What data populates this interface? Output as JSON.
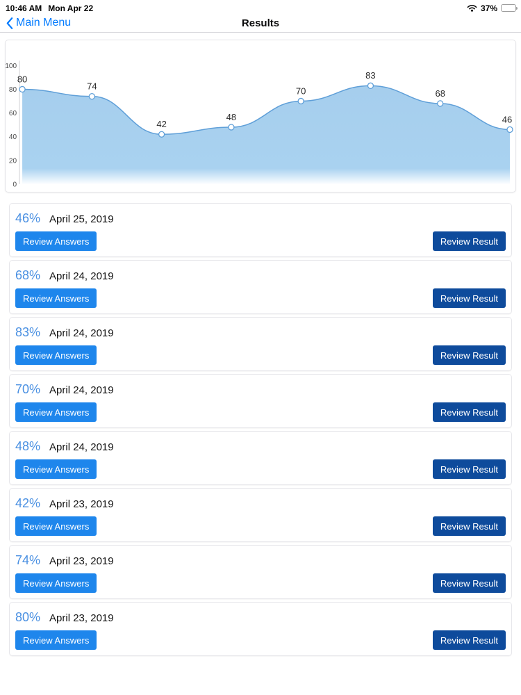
{
  "status_bar": {
    "time": "10:46 AM",
    "date": "Mon Apr 22",
    "battery_percent": "37%",
    "battery_level": 0.37
  },
  "nav_bar": {
    "back_label": "Main Menu",
    "title": "Results"
  },
  "chart_data": {
    "type": "area",
    "values": [
      80,
      74,
      42,
      48,
      70,
      83,
      68,
      46
    ],
    "point_labels": [
      "80",
      "74",
      "42",
      "48",
      "70",
      "83",
      "68",
      "46"
    ],
    "y_ticks": [
      0,
      20,
      40,
      60,
      80,
      100
    ],
    "ylim": [
      0,
      100
    ],
    "grid": false,
    "legend": false,
    "smooth": true,
    "line_color": "#5F9FD8",
    "fill_color": "#A9D2F0",
    "point_fill": "#ffffff",
    "label_color": "#2b2b2b",
    "tick_color": "#4a4a4a",
    "axis_color": "#D3D3D6"
  },
  "results": {
    "review_answers_label": "Review Answers",
    "review_result_label": "Review Result",
    "items": [
      {
        "percent": "46%",
        "date": "April 25, 2019"
      },
      {
        "percent": "68%",
        "date": "April 24, 2019"
      },
      {
        "percent": "83%",
        "date": "April 24, 2019"
      },
      {
        "percent": "70%",
        "date": "April 24, 2019"
      },
      {
        "percent": "48%",
        "date": "April 24, 2019"
      },
      {
        "percent": "42%",
        "date": "April 23, 2019"
      },
      {
        "percent": "74%",
        "date": "April 23, 2019"
      },
      {
        "percent": "80%",
        "date": "April 23, 2019"
      }
    ]
  },
  "colors": {
    "ios_accent_blue": "#007AFF",
    "percent_blue": "#4A90E2",
    "answers_button_blue": "#1E86EC",
    "result_button_navy": "#0E4B9C"
  }
}
